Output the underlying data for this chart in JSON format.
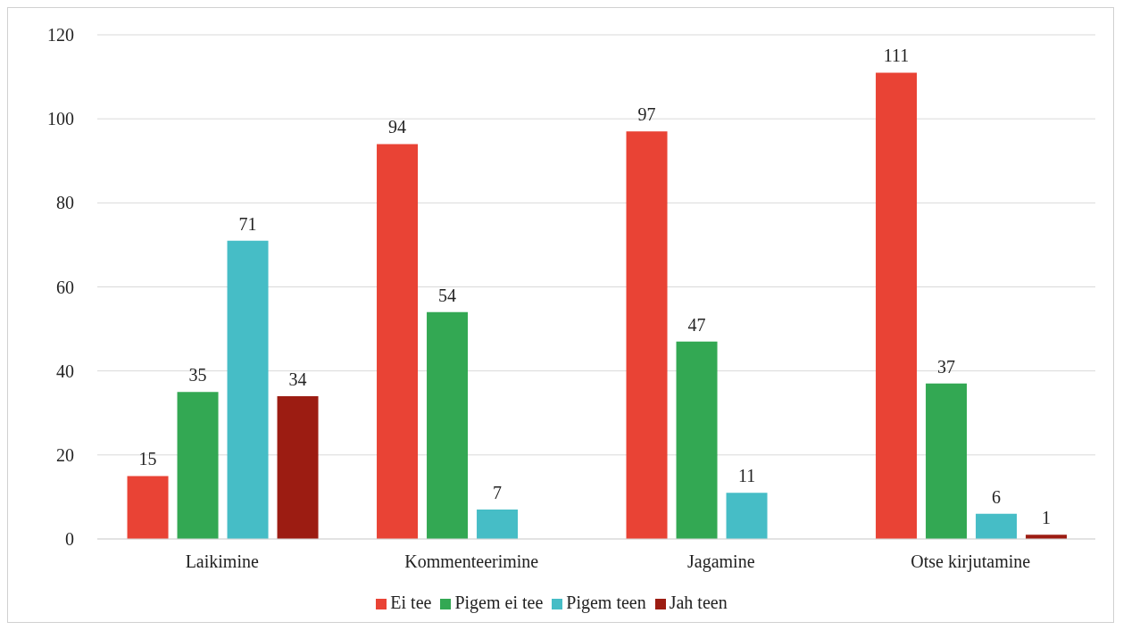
{
  "chart_data": {
    "type": "bar",
    "categories": [
      "Laikimine",
      "Kommenteerimine",
      "Jagamine",
      "Otse kirjutamine"
    ],
    "series": [
      {
        "name": "Ei tee",
        "color": "#e94335",
        "values": [
          15,
          94,
          97,
          111
        ]
      },
      {
        "name": "Pigem ei tee",
        "color": "#33a853",
        "values": [
          35,
          54,
          47,
          37
        ]
      },
      {
        "name": "Pigem teen",
        "color": "#46bdc6",
        "values": [
          71,
          7,
          11,
          6
        ]
      },
      {
        "name": "Jah teen",
        "color": "#9c1c12",
        "values": [
          34,
          null,
          null,
          1
        ]
      }
    ],
    "ylim": [
      0,
      120
    ],
    "yticks": [
      0,
      20,
      40,
      60,
      80,
      100,
      120
    ],
    "grid": "y",
    "legend": "bottom",
    "data_labels": true
  }
}
